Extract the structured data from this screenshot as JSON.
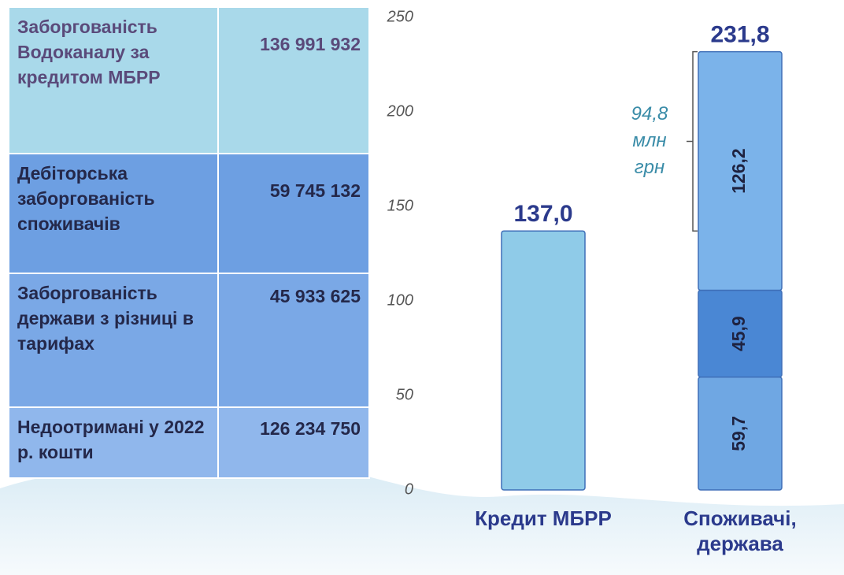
{
  "table": {
    "rows": [
      [
        "Заборгованість Водоканалу за кредитом МБРР",
        "136 991 932"
      ],
      [
        "Дебіторська заборгованість споживачів",
        "59 745 132"
      ],
      [
        "Заборгованість держави з різниці в тарифах",
        "45 933 625"
      ],
      [
        "Недоотримані у 2022 р. кошти",
        "126 234 750"
      ]
    ]
  },
  "chart_data": {
    "type": "stacked_bar",
    "categories": [
      "Кредит МБРР",
      "Споживачі, держава"
    ],
    "series": [
      {
        "colors": [
          "#8fcbe8",
          "#6fa7e3"
        ],
        "values": [
          137.0,
          59.7
        ],
        "value_labels": [
          null,
          "59,7"
        ]
      },
      {
        "color": "#4a87d4",
        "values": [
          null,
          45.9
        ],
        "value_labels": [
          null,
          "45,9"
        ]
      },
      {
        "color": "#7bb3ea",
        "values": [
          null,
          126.2
        ],
        "value_labels": [
          null,
          "126,2"
        ]
      }
    ],
    "totals": [
      137.0,
      231.8
    ],
    "total_labels": [
      "137,0",
      "231,8"
    ],
    "annotation": {
      "lines": [
        "94,8",
        "млн",
        "грн"
      ],
      "range": [
        137.0,
        231.8
      ]
    },
    "ylim": [
      0,
      250
    ],
    "yticks": [
      0,
      50,
      100,
      150,
      200,
      250
    ],
    "grid": false
  }
}
